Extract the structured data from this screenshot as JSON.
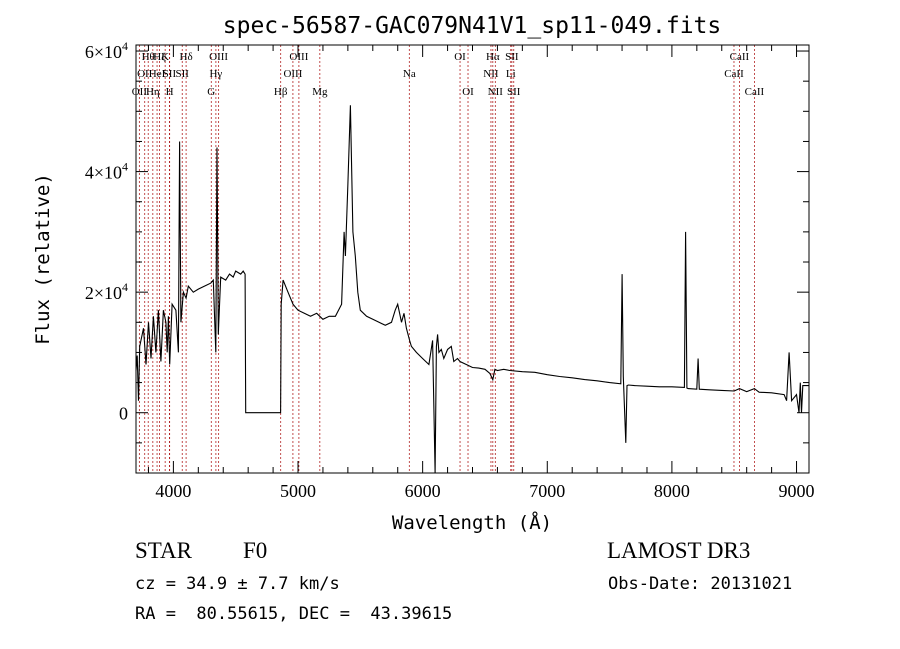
{
  "chart_data": {
    "type": "line",
    "title": "spec-56587-GAC079N41V1_sp11-049.fits",
    "xlabel": "Wavelength (Å)",
    "ylabel": "Flux (relative)",
    "xlim": [
      3700,
      9100
    ],
    "ylim": [
      -10000,
      61000
    ],
    "x_ticks": [
      4000,
      5000,
      6000,
      7000,
      8000,
      9000
    ],
    "x_tick_labels": [
      "4000",
      "5000",
      "6000",
      "7000",
      "8000",
      "9000"
    ],
    "y_ticks": [
      0,
      20000,
      40000,
      60000
    ],
    "y_tick_labels": [
      {
        "mantissa": "0",
        "exp": ""
      },
      {
        "mantissa": "2×10",
        "exp": "4"
      },
      {
        "mantissa": "4×10",
        "exp": "4"
      },
      {
        "mantissa": "6×10",
        "exp": "4"
      }
    ],
    "grid": false,
    "series": [
      {
        "name": "spectrum",
        "x": [
          3700,
          3710,
          3720,
          3730,
          3760,
          3780,
          3800,
          3820,
          3840,
          3860,
          3880,
          3900,
          3920,
          3940,
          3950,
          3960,
          3970,
          3990,
          4020,
          4040,
          4050,
          4060,
          4080,
          4102,
          4120,
          4160,
          4200,
          4250,
          4300,
          4320,
          4340,
          4350,
          4360,
          4380,
          4420,
          4450,
          4480,
          4500,
          4540,
          4560,
          4575,
          4580,
          4860,
          4865,
          4880,
          4920,
          4960,
          5000,
          5050,
          5100,
          5150,
          5200,
          5250,
          5300,
          5350,
          5370,
          5380,
          5400,
          5420,
          5440,
          5450,
          5460,
          5480,
          5500,
          5550,
          5600,
          5650,
          5700,
          5750,
          5780,
          5800,
          5830,
          5850,
          5870,
          5895,
          5910,
          5950,
          6000,
          6050,
          6080,
          6100,
          6110,
          6120,
          6130,
          6150,
          6170,
          6200,
          6230,
          6250,
          6280,
          6300,
          6350,
          6400,
          6450,
          6500,
          6540,
          6563,
          6580,
          6600,
          6650,
          6700,
          6800,
          6900,
          7000,
          7100,
          7200,
          7300,
          7400,
          7500,
          7590,
          7600,
          7610,
          7630,
          7640,
          7650,
          7700,
          7800,
          7900,
          8000,
          8100,
          8110,
          8120,
          8130,
          8200,
          8210,
          8220,
          8300,
          8400,
          8500,
          8542,
          8600,
          8662,
          8700,
          8800,
          8900,
          8920,
          8940,
          8960,
          9000,
          9020,
          9030,
          9040,
          9050,
          9100
        ],
        "y": [
          7000,
          9500,
          2000,
          11000,
          14000,
          8000,
          15000,
          9000,
          16000,
          10000,
          17000,
          8500,
          17000,
          15000,
          10000,
          16000,
          8000,
          18000,
          17000,
          10000,
          45000,
          15000,
          20000,
          19000,
          21000,
          20000,
          20500,
          21000,
          21500,
          22000,
          10000,
          44000,
          13000,
          22500,
          22000,
          23000,
          22500,
          23500,
          23000,
          23500,
          23000,
          0,
          0,
          18000,
          22000,
          20000,
          18000,
          17000,
          16500,
          16000,
          16500,
          15500,
          16000,
          16000,
          18000,
          30000,
          26000,
          38000,
          51000,
          30000,
          28000,
          26000,
          20000,
          17000,
          16000,
          15500,
          15000,
          14500,
          15000,
          17000,
          18000,
          15000,
          16500,
          14000,
          12000,
          11000,
          10000,
          9000,
          8000,
          12000,
          -11000,
          11000,
          13000,
          10000,
          10500,
          9000,
          10500,
          11000,
          8500,
          9000,
          8500,
          8000,
          7500,
          7400,
          7200,
          6500,
          5500,
          7200,
          7000,
          7200,
          7000,
          6800,
          6700,
          6300,
          6000,
          5800,
          5500,
          5300,
          5000,
          4800,
          23000,
          6000,
          -5000,
          4500,
          4600,
          4500,
          4400,
          4300,
          4300,
          4200,
          30000,
          4100,
          4000,
          3900,
          9000,
          3900,
          3800,
          3700,
          3600,
          4000,
          3500,
          4000,
          3400,
          3300,
          3000,
          2000,
          10000,
          2000,
          3000,
          0,
          5000,
          0,
          4500,
          4500
        ]
      }
    ],
    "spectral_lines": [
      {
        "wave": 3727,
        "row": 2,
        "label": "OII"
      },
      {
        "wave": 3770,
        "row": 1,
        "label": "OII"
      },
      {
        "wave": 3798,
        "row": 0,
        "label": "Hθ"
      },
      {
        "wave": 3835,
        "row": 2,
        "label": "Hη"
      },
      {
        "wave": 3869,
        "row": 1,
        "label": "HeI"
      },
      {
        "wave": 3889,
        "row": 0,
        "label": "Hζ"
      },
      {
        "wave": 3934,
        "row": 0,
        "label": "K"
      },
      {
        "wave": 3968,
        "row": 1,
        "label": "SII"
      },
      {
        "wave": 3970,
        "row": 2,
        "label": "H"
      },
      {
        "wave": 4071,
        "row": 1,
        "label": "SII"
      },
      {
        "wave": 4102,
        "row": 0,
        "label": "Hδ"
      },
      {
        "wave": 4304,
        "row": 2,
        "label": "G"
      },
      {
        "wave": 4341,
        "row": 1,
        "label": "Hγ"
      },
      {
        "wave": 4363,
        "row": 0,
        "label": "OIII"
      },
      {
        "wave": 4861,
        "row": 2,
        "label": "Hβ"
      },
      {
        "wave": 4959,
        "row": 1,
        "label": "OIII"
      },
      {
        "wave": 5007,
        "row": 0,
        "label": "OIII"
      },
      {
        "wave": 5175,
        "row": 2,
        "label": "Mg"
      },
      {
        "wave": 5893,
        "row": 1,
        "label": "Na"
      },
      {
        "wave": 6300,
        "row": 0,
        "label": "OI"
      },
      {
        "wave": 6364,
        "row": 2,
        "label": "OI"
      },
      {
        "wave": 6548,
        "row": 1,
        "label": "NII"
      },
      {
        "wave": 6563,
        "row": 0,
        "label": "Hα"
      },
      {
        "wave": 6583,
        "row": 2,
        "label": "NII"
      },
      {
        "wave": 6707,
        "row": 1,
        "label": "Li"
      },
      {
        "wave": 6716,
        "row": 0,
        "label": "SII"
      },
      {
        "wave": 6731,
        "row": 2,
        "label": "SII"
      },
      {
        "wave": 8498,
        "row": 1,
        "label": "CaII"
      },
      {
        "wave": 8542,
        "row": 0,
        "label": "CaII"
      },
      {
        "wave": 8662,
        "row": 2,
        "label": "CaII"
      }
    ]
  },
  "info": {
    "class_label": "STAR",
    "subclass": "F0",
    "survey": "LAMOST DR3",
    "cz": "cz = 34.9 ± 7.7 km/s",
    "obs_date": "Obs-Date: 20131021",
    "radec": "RA =  80.55615, DEC =  43.39615"
  }
}
